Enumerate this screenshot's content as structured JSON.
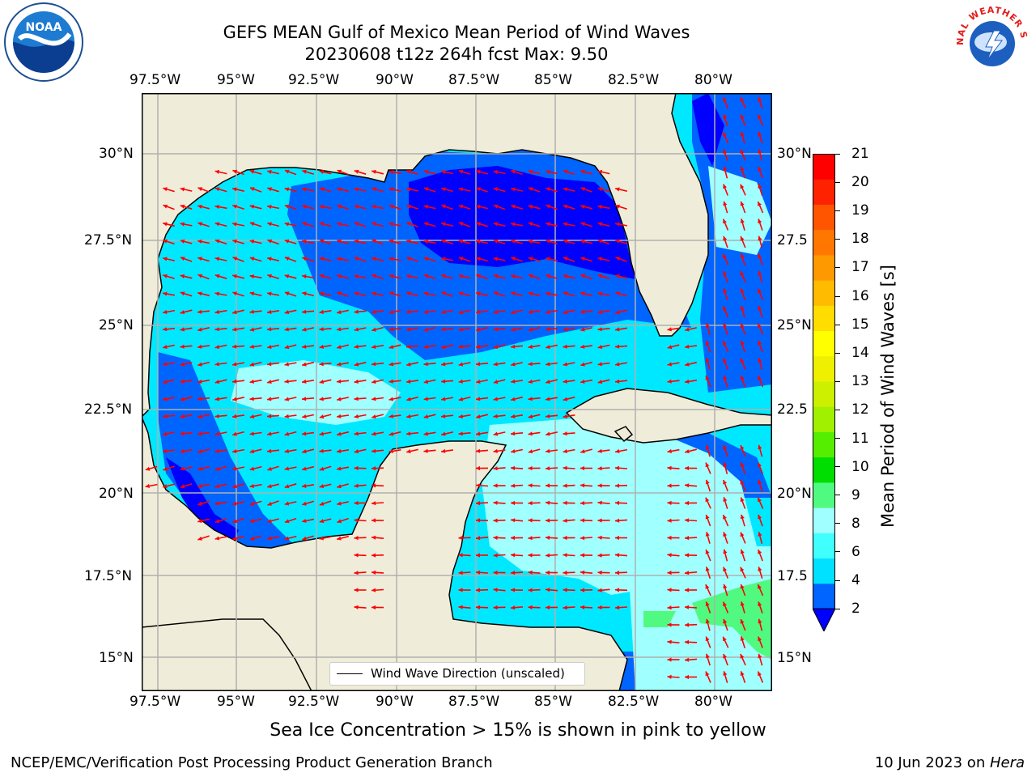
{
  "header": {
    "title_line1": "GEFS MEAN Gulf of Mexico Mean Period of Wind Waves",
    "title_line2": "20230608 t12z 264h fcst   Max: 9.50"
  },
  "logos": {
    "left": "NOAA",
    "right": "NATIONAL WEATHER SERVICE"
  },
  "map": {
    "lon_ticks": [
      "97.5°W",
      "95°W",
      "92.5°W",
      "90°W",
      "87.5°W",
      "85°W",
      "82.5°W",
      "80°W"
    ],
    "lat_ticks_left": [
      "30°N",
      "27.5°N",
      "25°N",
      "22.5°N",
      "20°N",
      "17.5°N",
      "15°N"
    ],
    "lat_ticks_right": [
      "30°N",
      "27.5",
      "25°N",
      "22.5",
      "20°N",
      "17.5",
      "15°N"
    ],
    "legend_label": "Wind Wave Direction (unscaled)",
    "colors": {
      "land": "#efedd9",
      "vector": "#ff0000",
      "grid": "#b0b0b0"
    }
  },
  "colorbar": {
    "label": "Mean Period of Wind Waves [s]",
    "ticks": [
      "21",
      "20",
      "19",
      "18",
      "17",
      "16",
      "15",
      "14",
      "13",
      "12",
      "11",
      "10",
      "9",
      "8",
      "6",
      "4",
      "2"
    ],
    "colors": [
      "#0064ff",
      "#00e0ff",
      "#40ffff",
      "#a0ffff",
      "#50fa80",
      "#00dd00",
      "#55ee00",
      "#a0f000",
      "#ccf000",
      "#eef000",
      "#ffff00",
      "#ffdd00",
      "#ffbb00",
      "#ff9900",
      "#ff7700",
      "#ff5500",
      "#ff2200",
      "#ff0000"
    ],
    "extend_color": "#0000ff"
  },
  "note": "Sea Ice Concentration > 15% is shown in pink to yellow",
  "footer": {
    "left": "NCEP/EMC/Verification Post Processing Product Generation Branch",
    "right_date": "10 Jun 2023 on ",
    "right_host": "Hera"
  }
}
